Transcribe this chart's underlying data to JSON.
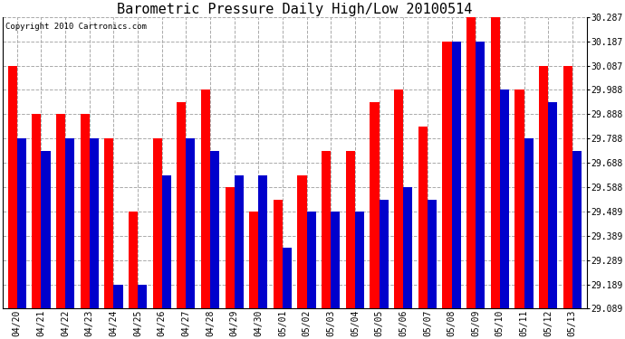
{
  "title": "Barometric Pressure Daily High/Low 20100514",
  "copyright": "Copyright 2010 Cartronics.com",
  "yticks": [
    29.089,
    29.189,
    29.289,
    29.389,
    29.489,
    29.588,
    29.688,
    29.788,
    29.888,
    29.988,
    30.087,
    30.187,
    30.287
  ],
  "ylim": [
    29.089,
    30.287
  ],
  "ybase": 29.089,
  "background_color": "#ffffff",
  "grid_color": "#aaaaaa",
  "dates": [
    "04/20",
    "04/21",
    "04/22",
    "04/23",
    "04/24",
    "04/25",
    "04/26",
    "04/27",
    "04/28",
    "04/29",
    "04/30",
    "05/01",
    "05/02",
    "05/03",
    "05/04",
    "05/05",
    "05/06",
    "05/07",
    "05/08",
    "05/09",
    "05/10",
    "05/11",
    "05/12",
    "05/13"
  ],
  "high": [
    30.087,
    29.888,
    29.888,
    29.888,
    29.788,
    29.488,
    29.788,
    29.938,
    29.988,
    29.588,
    29.488,
    29.538,
    29.638,
    29.738,
    29.738,
    29.938,
    29.988,
    29.838,
    30.187,
    30.287,
    30.287,
    29.988,
    30.087,
    30.087
  ],
  "low": [
    29.788,
    29.738,
    29.788,
    29.788,
    29.189,
    29.189,
    29.638,
    29.788,
    29.738,
    29.638,
    29.638,
    29.338,
    29.488,
    29.488,
    29.488,
    29.538,
    29.588,
    29.538,
    30.187,
    30.187,
    29.988,
    29.788,
    29.938,
    29.738
  ],
  "high_color": "#ff0000",
  "low_color": "#0000cc",
  "bar_width": 0.38,
  "title_fontsize": 11,
  "tick_fontsize": 7,
  "copyright_fontsize": 6.5
}
